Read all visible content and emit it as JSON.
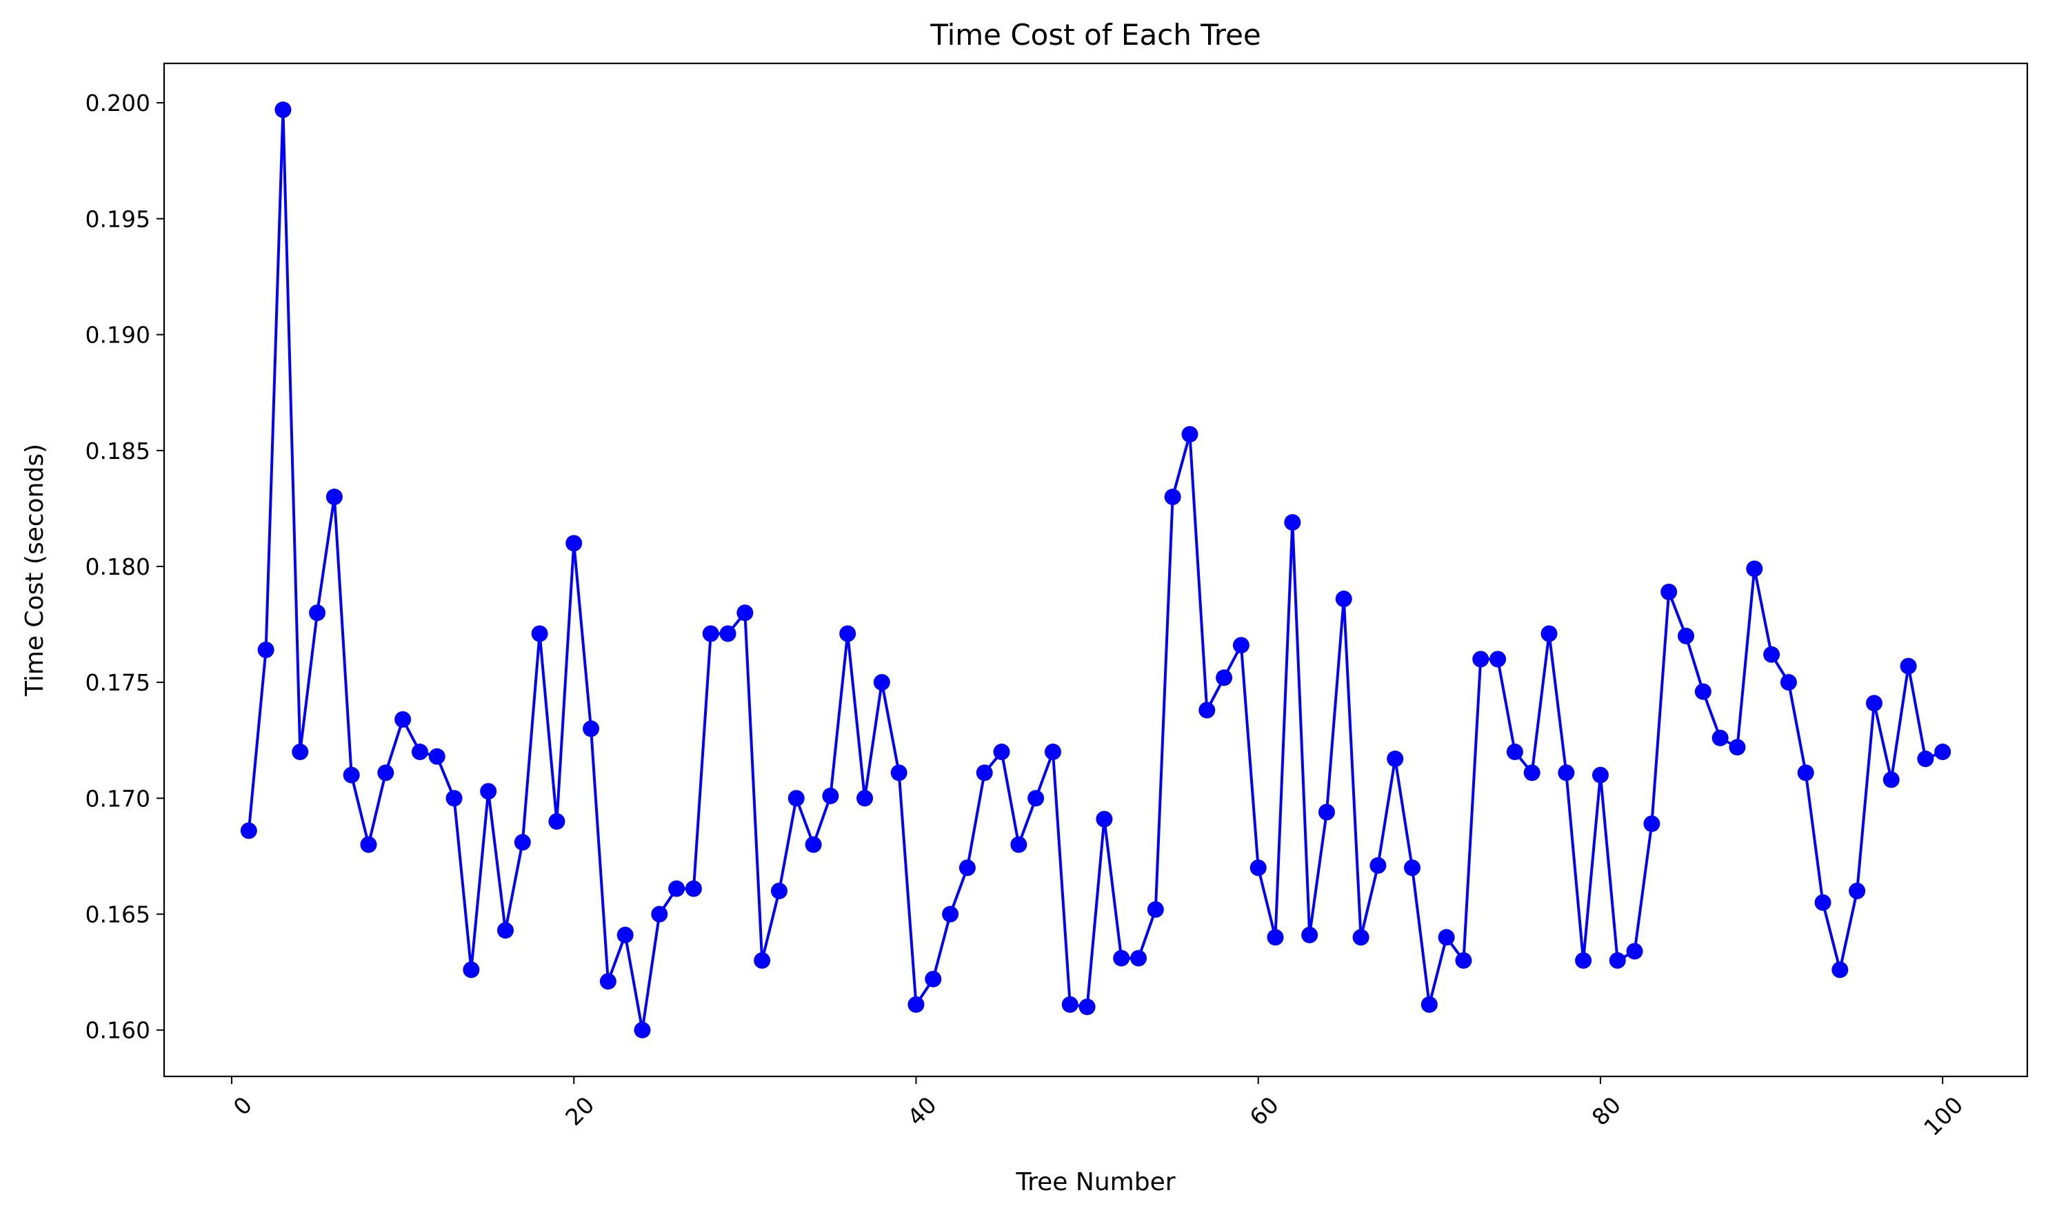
{
  "chart_data": {
    "type": "line",
    "title": "Time Cost of Each Tree",
    "xlabel": "Tree Number",
    "ylabel": "Time Cost (seconds)",
    "xlim": [
      -3.95,
      104.95
    ],
    "ylim": [
      0.158,
      0.2017
    ],
    "xticks": [
      0,
      20,
      40,
      60,
      80,
      100
    ],
    "xtick_labels": [
      "0",
      "20",
      "40",
      "60",
      "80",
      "100"
    ],
    "xtick_rotation": 45,
    "yticks": [
      0.16,
      0.165,
      0.17,
      0.175,
      0.18,
      0.185,
      0.19,
      0.195,
      0.2
    ],
    "ytick_labels": [
      "0.160",
      "0.165",
      "0.170",
      "0.175",
      "0.180",
      "0.185",
      "0.190",
      "0.195",
      "0.200"
    ],
    "grid": false,
    "legend": null,
    "series": [
      {
        "color": "#0000ff",
        "marker": "circle",
        "x": [
          1,
          2,
          3,
          4,
          5,
          6,
          7,
          8,
          9,
          10,
          11,
          12,
          13,
          14,
          15,
          16,
          17,
          18,
          19,
          20,
          21,
          22,
          23,
          24,
          25,
          26,
          27,
          28,
          29,
          30,
          31,
          32,
          33,
          34,
          35,
          36,
          37,
          38,
          39,
          40,
          41,
          42,
          43,
          44,
          45,
          46,
          47,
          48,
          49,
          50,
          51,
          52,
          53,
          54,
          55,
          56,
          57,
          58,
          59,
          60,
          61,
          62,
          63,
          64,
          65,
          66,
          67,
          68,
          69,
          70,
          71,
          72,
          73,
          74,
          75,
          76,
          77,
          78,
          79,
          80,
          81,
          82,
          83,
          84,
          85,
          86,
          87,
          88,
          89,
          90,
          91,
          92,
          93,
          94,
          95,
          96,
          97,
          98,
          99,
          100
        ],
        "values": [
          0.1686,
          0.1764,
          0.1997,
          0.172,
          0.178,
          0.183,
          0.171,
          0.168,
          0.1711,
          0.1734,
          0.172,
          0.1718,
          0.17,
          0.1626,
          0.1703,
          0.1643,
          0.1681,
          0.1771,
          0.169,
          0.181,
          0.173,
          0.1621,
          0.1641,
          0.16,
          0.165,
          0.1661,
          0.1661,
          0.1771,
          0.1771,
          0.178,
          0.163,
          0.166,
          0.17,
          0.168,
          0.1701,
          0.1771,
          0.17,
          0.175,
          0.1711,
          0.1611,
          0.1622,
          0.165,
          0.167,
          0.1711,
          0.172,
          0.168,
          0.17,
          0.172,
          0.1611,
          0.161,
          0.1691,
          0.1631,
          0.1631,
          0.1652,
          0.183,
          0.1857,
          0.1738,
          0.1752,
          0.1766,
          0.167,
          0.164,
          0.1819,
          0.1641,
          0.1694,
          0.1786,
          0.164,
          0.1671,
          0.1717,
          0.167,
          0.1611,
          0.164,
          0.163,
          0.176,
          0.176,
          0.172,
          0.1711,
          0.1771,
          0.1711,
          0.163,
          0.171,
          0.163,
          0.1634,
          0.1689,
          0.1789,
          0.177,
          0.1746,
          0.1726,
          0.1722,
          0.1799,
          0.1762,
          0.175,
          0.1711,
          0.1655,
          0.1626,
          0.166,
          0.1741,
          0.1708,
          0.1757,
          0.1717,
          0.172
        ]
      }
    ]
  }
}
